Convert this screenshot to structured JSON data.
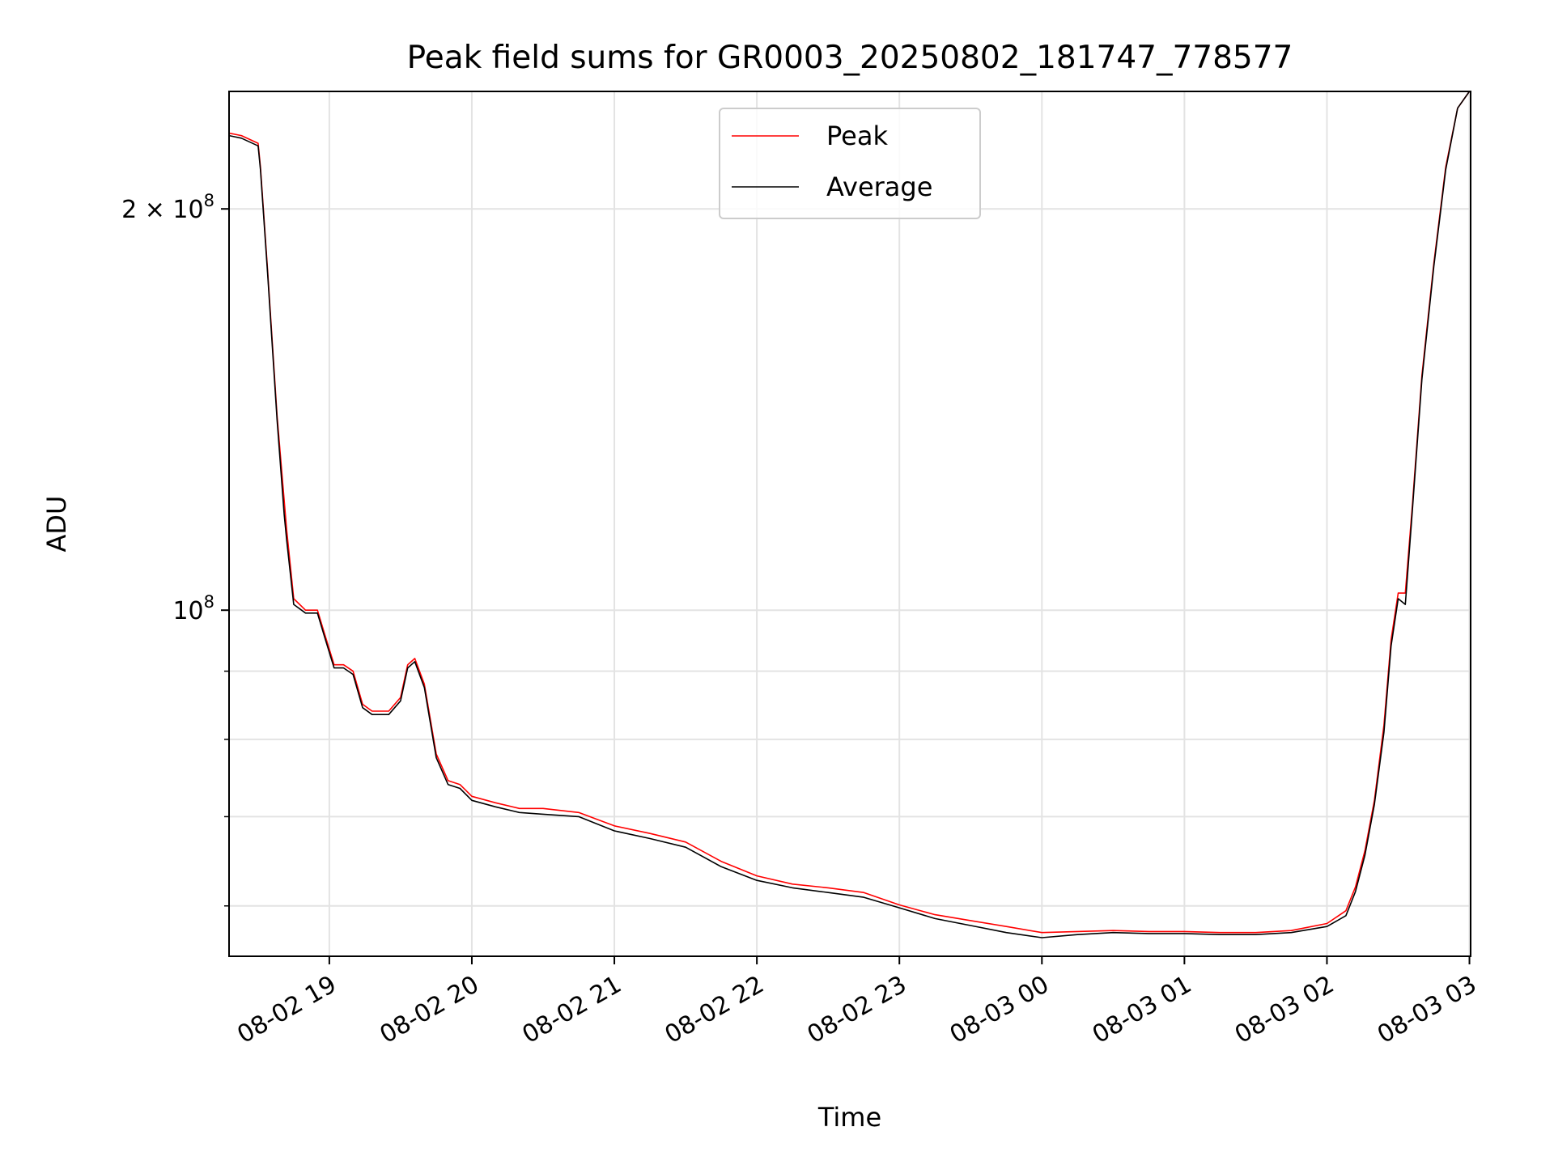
{
  "chart_data": {
    "type": "line",
    "title": "Peak field sums for GR0003_20250802_181747_778577",
    "xlabel": "Time",
    "ylabel": "ADU",
    "y_scale": "log",
    "ylim": [
      55000000,
      245000000
    ],
    "xlim": [
      "2025-08-02 18:17:47",
      "2025-08-03 03:00:30"
    ],
    "grid": true,
    "legend_position": "upper center",
    "x_tick_labels": [
      "08-02 19",
      "08-02 20",
      "08-02 21",
      "08-02 22",
      "08-02 23",
      "08-03 00",
      "08-03 01",
      "08-03 02",
      "08-03 03"
    ],
    "x_ticks": [
      "2025-08-02 19:00",
      "2025-08-02 20:00",
      "2025-08-02 21:00",
      "2025-08-02 22:00",
      "2025-08-02 23:00",
      "2025-08-03 00:00",
      "2025-08-03 01:00",
      "2025-08-03 02:00",
      "2025-08-03 03:00"
    ],
    "y_major_ticks": [
      {
        "value": 100000000,
        "base": "10",
        "exp": "8",
        "coef": ""
      },
      {
        "value": 200000000,
        "base": "10",
        "exp": "8",
        "coef": "2 × "
      }
    ],
    "y_minor_ticks": [
      60000000,
      70000000,
      80000000,
      90000000
    ],
    "series": [
      {
        "name": "Peak",
        "color": "#ff0000",
        "x": [
          "2025-08-02 18:17:47",
          "2025-08-02 18:23",
          "2025-08-02 18:30",
          "2025-08-02 18:31",
          "2025-08-02 18:34",
          "2025-08-02 18:38",
          "2025-08-02 18:42",
          "2025-08-02 18:45",
          "2025-08-02 18:50",
          "2025-08-02 18:55",
          "2025-08-02 18:58",
          "2025-08-02 19:02",
          "2025-08-02 19:06",
          "2025-08-02 19:10",
          "2025-08-02 19:14",
          "2025-08-02 19:18",
          "2025-08-02 19:25",
          "2025-08-02 19:30",
          "2025-08-02 19:33",
          "2025-08-02 19:36",
          "2025-08-02 19:40",
          "2025-08-02 19:45",
          "2025-08-02 19:50",
          "2025-08-02 19:55",
          "2025-08-02 20:00",
          "2025-08-02 20:10",
          "2025-08-02 20:20",
          "2025-08-02 20:30",
          "2025-08-02 20:45",
          "2025-08-02 21:00",
          "2025-08-02 21:15",
          "2025-08-02 21:30",
          "2025-08-02 21:45",
          "2025-08-02 22:00",
          "2025-08-02 22:15",
          "2025-08-02 22:30",
          "2025-08-02 22:45",
          "2025-08-02 23:00",
          "2025-08-02 23:15",
          "2025-08-02 23:30",
          "2025-08-02 23:45",
          "2025-08-03 00:00",
          "2025-08-03 00:15",
          "2025-08-03 00:30",
          "2025-08-03 00:45",
          "2025-08-03 01:00",
          "2025-08-03 01:15",
          "2025-08-03 01:30",
          "2025-08-03 01:45",
          "2025-08-03 02:00",
          "2025-08-03 02:08",
          "2025-08-03 02:12",
          "2025-08-03 02:16",
          "2025-08-03 02:20",
          "2025-08-03 02:24",
          "2025-08-03 02:27",
          "2025-08-03 02:30",
          "2025-08-03 02:33",
          "2025-08-03 02:36",
          "2025-08-03 02:40",
          "2025-08-03 02:45",
          "2025-08-03 02:50",
          "2025-08-03 02:55",
          "2025-08-03 03:00"
        ],
        "y": [
          228000000,
          227000000,
          224000000,
          215000000,
          180000000,
          140000000,
          115000000,
          102000000,
          100000000,
          100000000,
          96000000,
          91000000,
          91000000,
          90000000,
          85000000,
          84000000,
          84000000,
          86000000,
          91000000,
          92000000,
          88000000,
          78000000,
          74500000,
          74000000,
          72500000,
          71700000,
          71000000,
          71000000,
          70500000,
          68900000,
          68000000,
          67000000,
          64800000,
          63200000,
          62300000,
          61900000,
          61400000,
          60100000,
          59100000,
          58500000,
          57900000,
          57300000,
          57400000,
          57500000,
          57400000,
          57400000,
          57300000,
          57300000,
          57500000,
          58200000,
          59500000,
          62000000,
          66000000,
          72000000,
          82000000,
          95000000,
          103000000,
          103000000,
          120000000,
          150000000,
          182000000,
          215000000,
          238000000,
          245000000
        ]
      },
      {
        "name": "Average",
        "color": "#000000",
        "x": [
          "2025-08-02 18:17:47",
          "2025-08-02 18:23",
          "2025-08-02 18:30",
          "2025-08-02 18:31",
          "2025-08-02 18:34",
          "2025-08-02 18:38",
          "2025-08-02 18:41",
          "2025-08-02 18:42",
          "2025-08-02 18:45",
          "2025-08-02 18:50",
          "2025-08-02 18:55",
          "2025-08-02 18:58",
          "2025-08-02 19:02",
          "2025-08-02 19:06",
          "2025-08-02 19:10",
          "2025-08-02 19:14",
          "2025-08-02 19:18",
          "2025-08-02 19:25",
          "2025-08-02 19:30",
          "2025-08-02 19:33",
          "2025-08-02 19:36",
          "2025-08-02 19:40",
          "2025-08-02 19:45",
          "2025-08-02 19:50",
          "2025-08-02 19:55",
          "2025-08-02 20:00",
          "2025-08-02 20:10",
          "2025-08-02 20:20",
          "2025-08-02 20:30",
          "2025-08-02 20:45",
          "2025-08-02 21:00",
          "2025-08-02 21:15",
          "2025-08-02 21:30",
          "2025-08-02 21:45",
          "2025-08-02 22:00",
          "2025-08-02 22:15",
          "2025-08-02 22:30",
          "2025-08-02 22:45",
          "2025-08-02 23:00",
          "2025-08-02 23:15",
          "2025-08-02 23:30",
          "2025-08-02 23:45",
          "2025-08-03 00:00",
          "2025-08-03 00:15",
          "2025-08-03 00:30",
          "2025-08-03 00:45",
          "2025-08-03 01:00",
          "2025-08-03 01:15",
          "2025-08-03 01:30",
          "2025-08-03 01:45",
          "2025-08-03 02:00",
          "2025-08-03 02:08",
          "2025-08-03 02:12",
          "2025-08-03 02:16",
          "2025-08-03 02:20",
          "2025-08-03 02:24",
          "2025-08-03 02:27",
          "2025-08-03 02:30",
          "2025-08-03 02:33",
          "2025-08-03 02:36",
          "2025-08-03 02:40",
          "2025-08-03 02:45",
          "2025-08-03 02:50",
          "2025-08-03 02:55",
          "2025-08-03 03:00"
        ],
        "y": [
          227000000,
          226000000,
          223000000,
          214000000,
          179000000,
          139000000,
          118000000,
          113000000,
          101000000,
          99500000,
          99500000,
          95500000,
          90500000,
          90500000,
          89500000,
          84500000,
          83500000,
          83500000,
          85500000,
          90500000,
          91500000,
          87500000,
          77500000,
          74000000,
          73500000,
          72000000,
          71200000,
          70500000,
          70300000,
          70000000,
          68300000,
          67400000,
          66400000,
          64200000,
          62700000,
          61900000,
          61400000,
          60900000,
          59800000,
          58700000,
          58000000,
          57300000,
          56800000,
          57100000,
          57300000,
          57200000,
          57200000,
          57100000,
          57100000,
          57300000,
          57900000,
          59000000,
          61500000,
          65500000,
          71500000,
          81000000,
          94000000,
          102000000,
          101000000,
          119000000,
          149000000,
          181000000,
          214000000,
          238000000,
          245000000
        ]
      }
    ]
  }
}
